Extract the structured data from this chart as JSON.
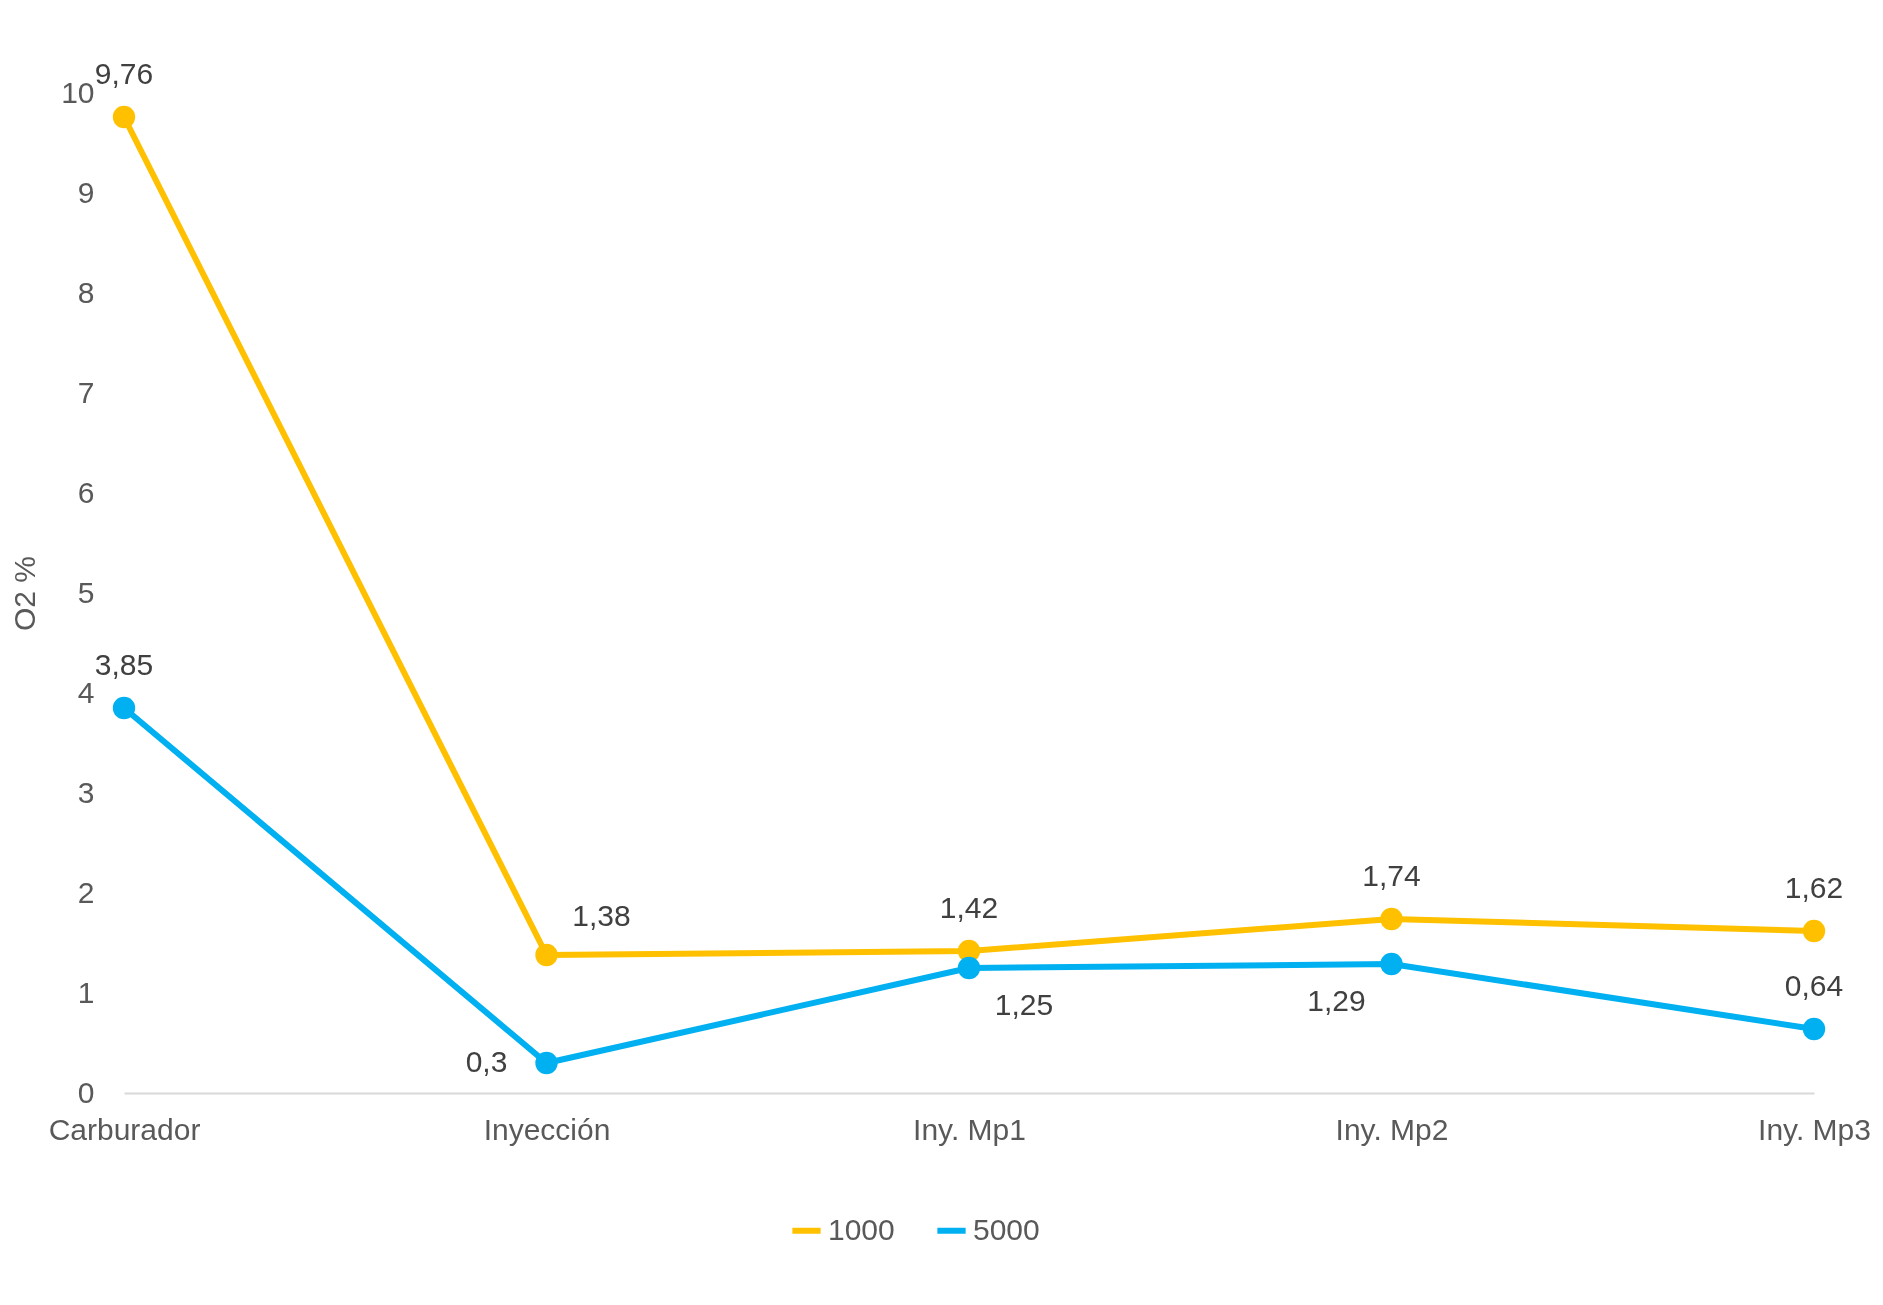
{
  "chart_data": {
    "type": "line",
    "ylabel": "O2 %",
    "categories": [
      "Carburador",
      "Inyección",
      "Iny. Mp1",
      "Iny. Mp2",
      "Iny. Mp3"
    ],
    "series": [
      {
        "name": "1000",
        "color": "#ffc000",
        "values": [
          9.76,
          1.38,
          1.42,
          1.74,
          1.62
        ],
        "value_labels": [
          "9,76",
          "1,38",
          "1,42",
          "1,74",
          "1,62"
        ]
      },
      {
        "name": "5000",
        "color": "#00b0f0",
        "values": [
          3.85,
          0.3,
          1.25,
          1.29,
          0.64
        ],
        "value_labels": [
          "3,85",
          "0,3",
          "1,25",
          "1,29",
          "0,64"
        ]
      }
    ],
    "ylim": [
      0,
      10
    ],
    "yticks": [
      0,
      1,
      2,
      3,
      4,
      5,
      6,
      7,
      8,
      9,
      10
    ],
    "grid": false,
    "legend": "bottom",
    "marker": "circle",
    "line_style": "solid"
  }
}
